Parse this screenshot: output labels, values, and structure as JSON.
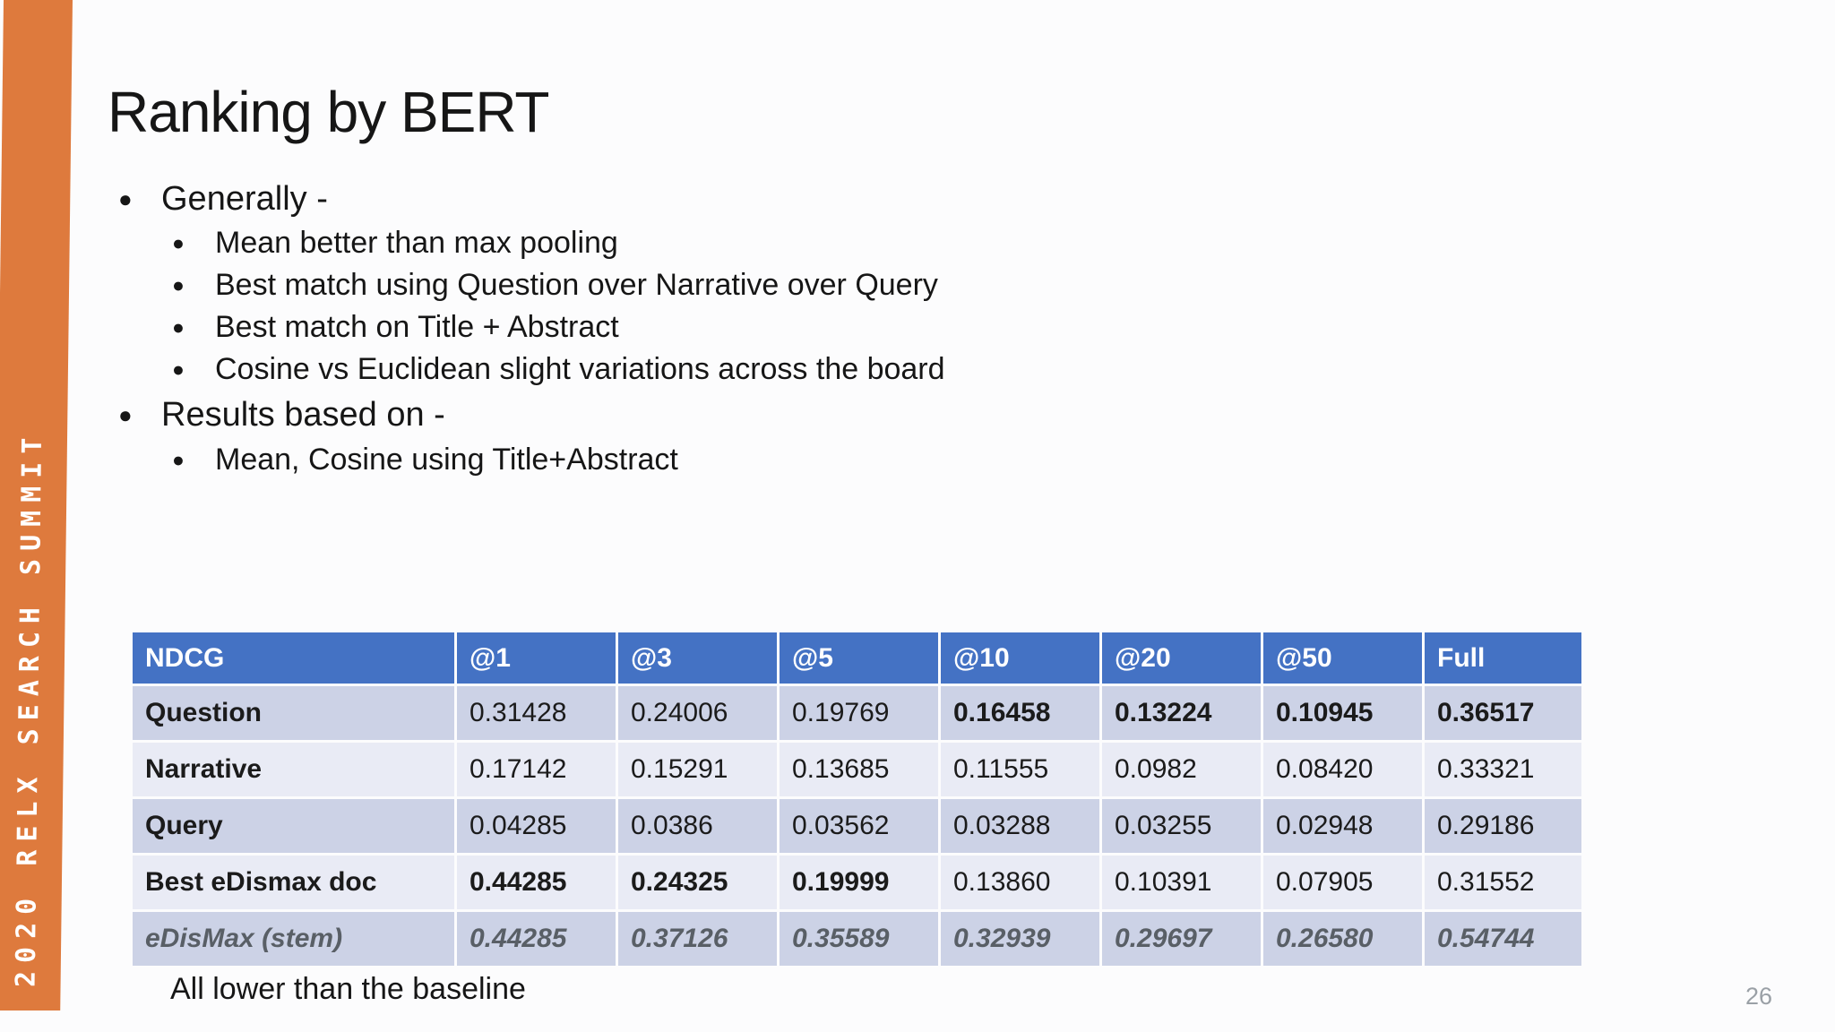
{
  "slide": {
    "title": "Ranking by BERT",
    "sidebar_text": "2020 RELX SEARCH SUMMIT",
    "footnote": "All lower than the baseline",
    "page_number": "26"
  },
  "bullets": [
    {
      "level": 1,
      "text": "Generally -"
    },
    {
      "level": 2,
      "text": "Mean better than max pooling"
    },
    {
      "level": 2,
      "text": "Best match using Question over Narrative over Query"
    },
    {
      "level": 2,
      "text": "Best match on Title + Abstract"
    },
    {
      "level": 2,
      "text": "Cosine vs Euclidean slight variations across the board"
    },
    {
      "level": 1,
      "text": "Results based on -"
    },
    {
      "level": 2,
      "text": "Mean, Cosine using Title+Abstract"
    }
  ],
  "chart_data": {
    "type": "table",
    "title": "NDCG results",
    "headers": [
      "NDCG",
      "@1",
      "@3",
      "@5",
      "@10",
      "@20",
      "@50",
      "Full"
    ],
    "rows": [
      {
        "label": "Question",
        "values": [
          "0.31428",
          "0.24006",
          "0.19769",
          "0.16458",
          "0.13224",
          "0.10945",
          "0.36517"
        ],
        "bold": [
          false,
          false,
          false,
          true,
          true,
          true,
          true
        ],
        "italic": false
      },
      {
        "label": "Narrative",
        "values": [
          "0.17142",
          "0.15291",
          "0.13685",
          "0.11555",
          "0.0982",
          "0.08420",
          "0.33321"
        ],
        "bold": [
          false,
          false,
          false,
          false,
          false,
          false,
          false
        ],
        "italic": false
      },
      {
        "label": "Query",
        "values": [
          "0.04285",
          "0.0386",
          "0.03562",
          "0.03288",
          "0.03255",
          "0.02948",
          "0.29186"
        ],
        "bold": [
          false,
          false,
          false,
          false,
          false,
          false,
          false
        ],
        "italic": false
      },
      {
        "label": "Best eDismax doc",
        "values": [
          "0.44285",
          "0.24325",
          "0.19999",
          "0.13860",
          "0.10391",
          "0.07905",
          "0.31552"
        ],
        "bold": [
          true,
          true,
          true,
          false,
          false,
          false,
          false
        ],
        "italic": false
      },
      {
        "label": "eDisMax (stem)",
        "values": [
          "0.44285",
          "0.37126",
          "0.35589",
          "0.32939",
          "0.29697",
          "0.26580",
          "0.54744"
        ],
        "bold": [
          true,
          true,
          true,
          true,
          true,
          true,
          true
        ],
        "italic": true
      }
    ]
  },
  "colors": {
    "accent_orange": "#DE7A3D",
    "table_header_blue": "#4472C4",
    "row_stripe_dark": "#CCD2E6",
    "row_stripe_light": "#E9EBF5",
    "stem_row_text": "#595F66",
    "page_number_gray": "#9AA0A6"
  }
}
